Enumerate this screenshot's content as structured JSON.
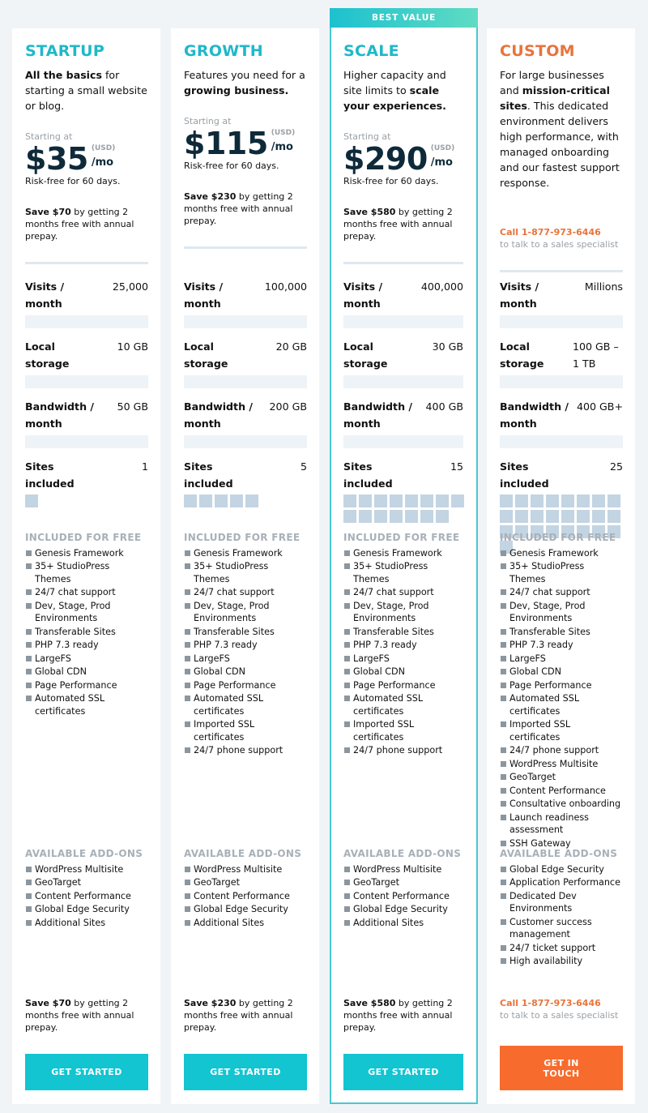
{
  "cards": [
    {
      "name": "STARTUP",
      "description": [
        {
          "text": "All the basics",
          "bold": true
        },
        {
          "text": " for starting a small website or blog."
        }
      ],
      "pricing": {
        "starting": "Starting at",
        "price": "$35",
        "currency": "(USD)",
        "period": "/mo",
        "note": "Risk-free for 60 days."
      },
      "save": {
        "bold": "Save $70",
        "text": " by getting 2 months free with annual prepay."
      },
      "specs": [
        {
          "label": "Visits / month",
          "value": "25,000"
        },
        {
          "label": "Local storage",
          "value": "10 GB"
        },
        {
          "label": "Bandwidth / month",
          "value": "50 GB"
        }
      ],
      "sites": {
        "label": "Sites included",
        "value": 1
      },
      "included": {
        "title": "INCLUDED FOR FREE",
        "items": [
          "Genesis Framework",
          "35+ StudioPress Themes",
          "24/7 chat support",
          "Dev, Stage, Prod Environments",
          "Transferable Sites",
          "PHP 7.3 ready",
          "LargeFS",
          "Global CDN",
          "Page Performance",
          "Automated SSL certificates"
        ]
      },
      "addons": {
        "title": "AVAILABLE ADD-ONS",
        "items": [
          "WordPress Multisite",
          "GeoTarget",
          "Content Performance",
          "Global Edge Security",
          "Additional Sites"
        ]
      },
      "button": "GET STARTED"
    },
    {
      "name": "GROWTH",
      "description": [
        {
          "text": "Features you need for a "
        },
        {
          "text": "growing business.",
          "bold": true
        }
      ],
      "pricing": {
        "starting": "Starting at",
        "price": "$115",
        "currency": "(USD)",
        "period": "/mo",
        "note": "Risk-free for 60 days."
      },
      "save": {
        "bold": "Save $230",
        "text": " by getting 2 months free with annual prepay."
      },
      "specs": [
        {
          "label": "Visits / month",
          "value": "100,000"
        },
        {
          "label": "Local storage",
          "value": "20 GB"
        },
        {
          "label": "Bandwidth / month",
          "value": "200 GB"
        }
      ],
      "sites": {
        "label": "Sites included",
        "value": 5
      },
      "included": {
        "title": "INCLUDED FOR FREE",
        "items": [
          "Genesis Framework",
          "35+ StudioPress Themes",
          "24/7 chat support",
          "Dev, Stage, Prod Environments",
          "Transferable Sites",
          "PHP 7.3 ready",
          "LargeFS",
          "Global CDN",
          "Page Performance",
          "Automated SSL certificates",
          "Imported SSL certificates",
          "24/7 phone support"
        ]
      },
      "addons": {
        "title": "AVAILABLE ADD-ONS",
        "items": [
          "WordPress Multisite",
          "GeoTarget",
          "Content Performance",
          "Global Edge Security",
          "Additional Sites"
        ]
      },
      "button": "GET STARTED"
    },
    {
      "name": "SCALE",
      "badge": "BEST VALUE",
      "description": [
        {
          "text": "Higher capacity and site limits to "
        },
        {
          "text": "scale your experiences.",
          "bold": true
        }
      ],
      "pricing": {
        "starting": "Starting at",
        "price": "$290",
        "currency": "(USD)",
        "period": "/mo",
        "note": "Risk-free for 60 days."
      },
      "save": {
        "bold": "Save $580",
        "text": " by getting 2 months free with annual prepay."
      },
      "specs": [
        {
          "label": "Visits / month",
          "value": "400,000"
        },
        {
          "label": "Local storage",
          "value": "30 GB"
        },
        {
          "label": "Bandwidth / month",
          "value": "400 GB"
        }
      ],
      "sites": {
        "label": "Sites included",
        "value": 15
      },
      "included": {
        "title": "INCLUDED FOR FREE",
        "items": [
          "Genesis Framework",
          "35+ StudioPress Themes",
          "24/7 chat support",
          "Dev, Stage, Prod Environments",
          "Transferable Sites",
          "PHP 7.3 ready",
          "LargeFS",
          "Global CDN",
          "Page Performance",
          "Automated SSL certificates",
          "Imported SSL certificates",
          "24/7 phone support"
        ]
      },
      "addons": {
        "title": "AVAILABLE ADD-ONS",
        "items": [
          "WordPress Multisite",
          "GeoTarget",
          "Content Performance",
          "Global Edge Security",
          "Additional Sites"
        ]
      },
      "button": "GET STARTED"
    },
    {
      "name": "CUSTOM",
      "description": [
        {
          "text": "For large businesses and "
        },
        {
          "text": "mission-critical sites",
          "bold": true
        },
        {
          "text": ". This dedicated environment delivers high performance, with managed onboarding and our fastest support response."
        }
      ],
      "contact": {
        "call": "Call 1-877-973-6446",
        "note": "to talk to a sales specialist"
      },
      "specs": [
        {
          "label": "Visits / month",
          "value": "Millions"
        },
        {
          "label": "Local storage",
          "value": "100 GB – 1 TB"
        },
        {
          "label": "Bandwidth / month",
          "value": "400 GB+"
        }
      ],
      "sites": {
        "label": "Sites included",
        "value": 25
      },
      "included": {
        "title": "INCLUDED FOR FREE",
        "items": [
          "Genesis Framework",
          "35+ StudioPress Themes",
          "24/7 chat support",
          "Dev, Stage, Prod Environments",
          "Transferable Sites",
          "PHP 7.3 ready",
          "LargeFS",
          "Global CDN",
          "Page Performance",
          "Automated SSL certificates",
          "Imported SSL certificates",
          "24/7 phone support",
          "WordPress Multisite",
          "GeoTarget",
          "Content Performance",
          "Consultative onboarding",
          "Launch readiness assessment",
          "SSH Gateway"
        ]
      },
      "addons": {
        "title": "AVAILABLE ADD-ONS",
        "items": [
          "Global Edge Security",
          "Application Performance",
          "Dedicated Dev Environments",
          "Customer success management",
          "24/7 ticket support",
          "High availability"
        ]
      },
      "button": "GET IN TOUCH"
    }
  ]
}
